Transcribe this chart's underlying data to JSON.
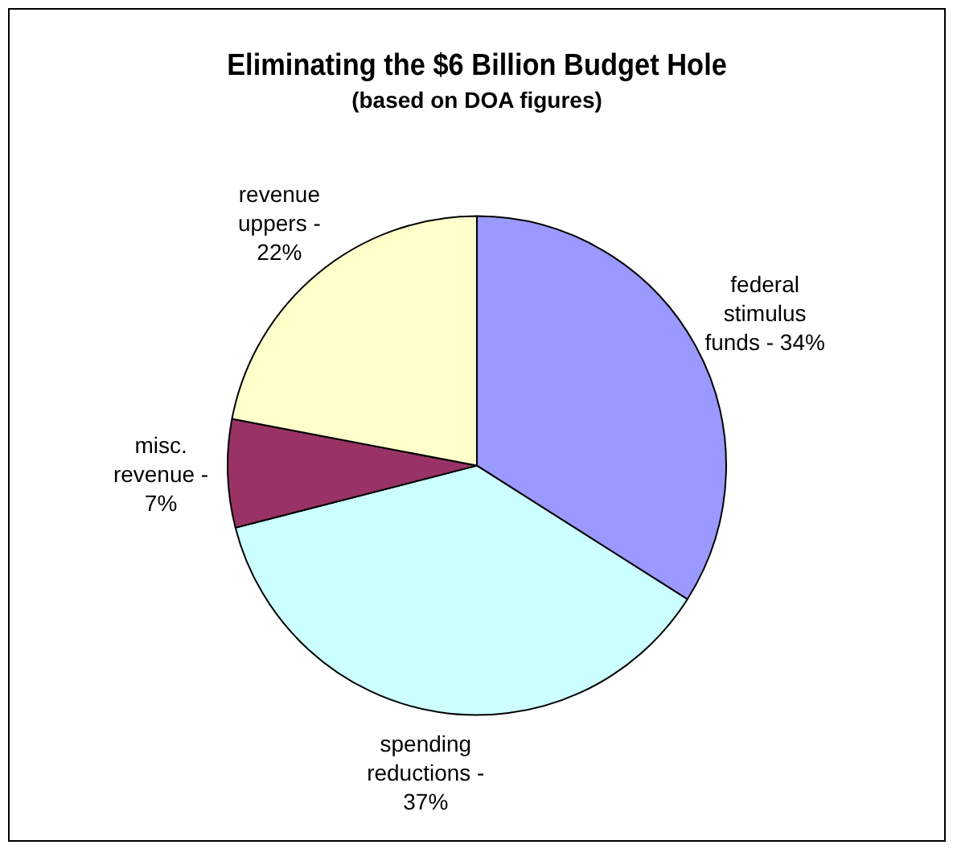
{
  "chart_data": {
    "type": "pie",
    "title": "Eliminating the $6 Billion Budget Hole",
    "subtitle": "(based on DOA figures)",
    "categories": [
      "federal stimulus funds - 34%",
      "spending reductions - 37%",
      "misc. revenue - 7%",
      "revenue uppers - 22%"
    ],
    "values": [
      34,
      37,
      7,
      22
    ],
    "colors": [
      "#9999ff",
      "#ccffff",
      "#993366",
      "#ffffcc"
    ],
    "legend": false
  }
}
